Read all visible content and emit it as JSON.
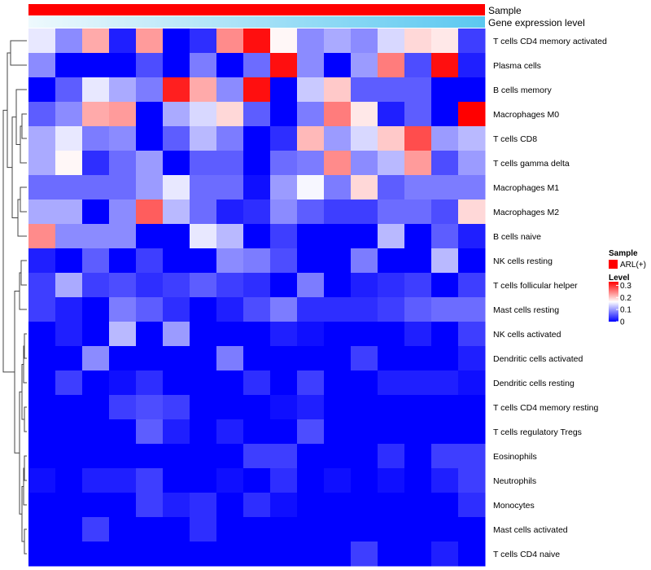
{
  "chart_data": {
    "type": "heatmap",
    "annotation_tracks": [
      {
        "name": "Sample",
        "color": "#ff0000"
      },
      {
        "name": "Gene expression level",
        "color": "#5bc8f0"
      }
    ],
    "rows": [
      "T cells CD4 memory activated",
      "Plasma cells",
      "B cells memory",
      "Macrophages M0",
      "T cells CD8",
      "T cells gamma delta",
      "Macrophages M1",
      "Macrophages M2",
      "B cells naive",
      "NK cells resting",
      "T cells follicular helper",
      "Mast cells resting",
      "NK cells activated",
      "Dendritic cells activated",
      "Dendritic cells resting",
      "T cells CD4 memory resting",
      "T cells regulatory  Tregs",
      "Eosinophils",
      "Neutrophils",
      "Monocytes",
      "Mast cells activated",
      "T cells CD4 naive"
    ],
    "n_columns": 17,
    "values": [
      [
        0.15,
        0.09,
        0.22,
        0.02,
        0.23,
        0.0,
        0.03,
        0.24,
        0.32,
        0.17,
        0.09,
        0.11,
        0.09,
        0.14,
        0.19,
        0.18,
        0.04
      ],
      [
        0.09,
        0.0,
        0.0,
        0.0,
        0.05,
        0.0,
        0.08,
        0.0,
        0.07,
        0.32,
        0.09,
        0.0,
        0.1,
        0.25,
        0.05,
        0.32,
        0.02
      ],
      [
        0.0,
        0.06,
        0.15,
        0.11,
        0.08,
        0.31,
        0.22,
        0.09,
        0.32,
        0.0,
        0.13,
        0.2,
        0.06,
        0.06,
        0.06,
        0.0,
        0.0
      ],
      [
        0.06,
        0.09,
        0.22,
        0.23,
        0.0,
        0.11,
        0.14,
        0.19,
        0.06,
        0.0,
        0.08,
        0.25,
        0.18,
        0.02,
        0.06,
        0.0,
        0.33
      ],
      [
        0.11,
        0.15,
        0.08,
        0.09,
        0.0,
        0.06,
        0.12,
        0.08,
        0.0,
        0.03,
        0.21,
        0.1,
        0.14,
        0.2,
        0.28,
        0.1,
        0.12
      ],
      [
        0.11,
        0.17,
        0.03,
        0.07,
        0.1,
        0.0,
        0.06,
        0.06,
        0.0,
        0.07,
        0.08,
        0.24,
        0.09,
        0.12,
        0.23,
        0.05,
        0.1
      ],
      [
        0.07,
        0.07,
        0.07,
        0.07,
        0.1,
        0.15,
        0.07,
        0.07,
        0.01,
        0.1,
        0.16,
        0.08,
        0.19,
        0.06,
        0.08,
        0.08,
        0.08
      ],
      [
        0.11,
        0.11,
        0.0,
        0.09,
        0.27,
        0.12,
        0.07,
        0.02,
        0.03,
        0.09,
        0.06,
        0.04,
        0.04,
        0.07,
        0.07,
        0.05,
        0.19
      ],
      [
        0.24,
        0.09,
        0.09,
        0.09,
        0.0,
        0.0,
        0.15,
        0.12,
        0.0,
        0.04,
        0.0,
        0.0,
        0.0,
        0.12,
        0.0,
        0.06,
        0.02
      ],
      [
        0.02,
        0.0,
        0.06,
        0.0,
        0.04,
        0.0,
        0.0,
        0.09,
        0.08,
        0.05,
        0.0,
        0.0,
        0.08,
        0.0,
        0.0,
        0.12,
        0.0
      ],
      [
        0.04,
        0.11,
        0.04,
        0.05,
        0.03,
        0.04,
        0.06,
        0.04,
        0.03,
        0.0,
        0.08,
        0.0,
        0.02,
        0.03,
        0.04,
        0.0,
        0.04
      ],
      [
        0.04,
        0.02,
        0.0,
        0.08,
        0.06,
        0.03,
        0.0,
        0.02,
        0.05,
        0.08,
        0.03,
        0.03,
        0.03,
        0.04,
        0.06,
        0.07,
        0.07
      ],
      [
        0.0,
        0.02,
        0.0,
        0.12,
        0.0,
        0.1,
        0.0,
        0.0,
        0.0,
        0.02,
        0.01,
        0.0,
        0.0,
        0.0,
        0.02,
        0.0,
        0.04
      ],
      [
        0.0,
        0.0,
        0.09,
        0.0,
        0.0,
        0.0,
        0.0,
        0.08,
        0.0,
        0.0,
        0.0,
        0.0,
        0.04,
        0.0,
        0.0,
        0.0,
        0.02
      ],
      [
        0.0,
        0.04,
        0.0,
        0.01,
        0.03,
        0.0,
        0.0,
        0.0,
        0.03,
        0.0,
        0.04,
        0.0,
        0.0,
        0.02,
        0.02,
        0.02,
        0.01
      ],
      [
        0.0,
        0.0,
        0.0,
        0.04,
        0.05,
        0.04,
        0.0,
        0.0,
        0.0,
        0.01,
        0.02,
        0.0,
        0.0,
        0.0,
        0.0,
        0.0,
        0.0
      ],
      [
        0.0,
        0.0,
        0.0,
        0.0,
        0.06,
        0.02,
        0.0,
        0.02,
        0.0,
        0.0,
        0.05,
        0.0,
        0.0,
        0.0,
        0.0,
        0.0,
        0.0
      ],
      [
        0.0,
        0.0,
        0.0,
        0.0,
        0.0,
        0.0,
        0.0,
        0.0,
        0.04,
        0.04,
        0.0,
        0.0,
        0.0,
        0.03,
        0.0,
        0.04,
        0.04
      ],
      [
        0.01,
        0.0,
        0.02,
        0.02,
        0.04,
        0.0,
        0.0,
        0.01,
        0.0,
        0.03,
        0.0,
        0.01,
        0.0,
        0.01,
        0.0,
        0.02,
        0.04
      ],
      [
        0.0,
        0.0,
        0.0,
        0.0,
        0.04,
        0.02,
        0.03,
        0.0,
        0.03,
        0.01,
        0.0,
        0.0,
        0.0,
        0.0,
        0.0,
        0.0,
        0.03
      ],
      [
        0.0,
        0.0,
        0.04,
        0.0,
        0.0,
        0.0,
        0.03,
        0.0,
        0.0,
        0.0,
        0.0,
        0.0,
        0.0,
        0.0,
        0.0,
        0.0,
        0.0
      ],
      [
        0.0,
        0.0,
        0.0,
        0.0,
        0.0,
        0.0,
        0.0,
        0.0,
        0.0,
        0.0,
        0.0,
        0.0,
        0.04,
        0.0,
        0.0,
        0.02,
        0.0
      ]
    ],
    "color_scale": {
      "min": 0,
      "max": 0.33,
      "stops": [
        {
          "value": 0,
          "color": "#0000ff"
        },
        {
          "value": 0.165,
          "color": "#ffffff"
        },
        {
          "value": 0.33,
          "color": "#ff0000"
        }
      ]
    },
    "legend": {
      "sample_title": "Sample",
      "sample_entry": "ARL(+)",
      "sample_color": "#ff0000",
      "level_title": "Level",
      "level_ticks": [
        {
          "value": 0.3,
          "label": "0.3"
        },
        {
          "value": 0.2,
          "label": "0.2"
        },
        {
          "value": 0.1,
          "label": "0.1"
        },
        {
          "value": 0,
          "label": "0"
        }
      ],
      "placement": "right"
    },
    "dendrogram": "rows"
  }
}
